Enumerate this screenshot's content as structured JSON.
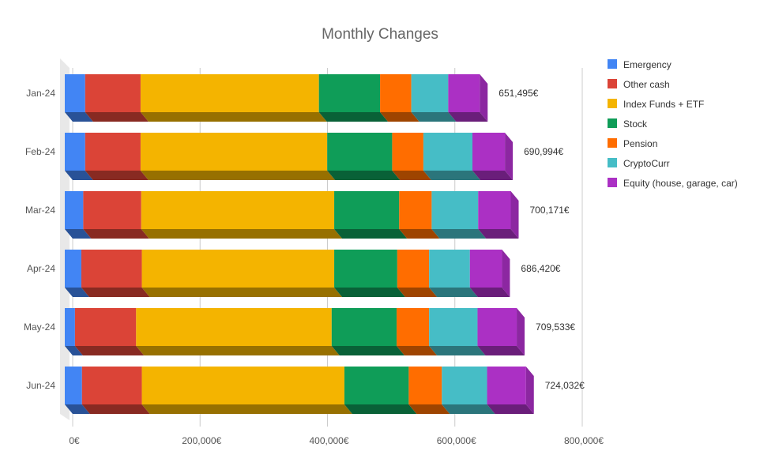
{
  "chart_data": {
    "type": "bar",
    "orientation": "horizontal",
    "stacked": true,
    "style": "3d",
    "title": "Monthly Changes",
    "xlabel": "",
    "ylabel": "",
    "xlim": [
      0,
      800000
    ],
    "x_ticks": [
      {
        "value": 0,
        "label": "0€"
      },
      {
        "value": 200000,
        "label": "200,000€"
      },
      {
        "value": 400000,
        "label": "400,000€"
      },
      {
        "value": 600000,
        "label": "600,000€"
      },
      {
        "value": 800000,
        "label": "800,000€"
      }
    ],
    "grid": true,
    "legend_position": "right",
    "categories": [
      "Jan-24",
      "Feb-24",
      "Mar-24",
      "Apr-24",
      "May-24",
      "Jun-24"
    ],
    "totals": [
      "651,495€",
      "690,994€",
      "700,171€",
      "686,420€",
      "709,533€",
      "724,032€"
    ],
    "series": [
      {
        "name": "Emergency",
        "color": "#4285f4",
        "values": [
          32000,
          32000,
          29000,
          26000,
          16000,
          27000
        ]
      },
      {
        "name": "Other cash",
        "color": "#db4437",
        "values": [
          87000,
          87000,
          91000,
          95000,
          96000,
          94000
        ]
      },
      {
        "name": "Index Funds + ETF",
        "color": "#f4b400",
        "values": [
          280000,
          293000,
          303000,
          302000,
          307000,
          318000
        ]
      },
      {
        "name": "Stock",
        "color": "#0f9d58",
        "values": [
          96000,
          102000,
          102000,
          99000,
          102000,
          101000
        ]
      },
      {
        "name": "Pension",
        "color": "#ff6d00",
        "values": [
          49000,
          49000,
          51000,
          50000,
          51000,
          52000
        ]
      },
      {
        "name": "CryptoCurr",
        "color": "#46bdc6",
        "values": [
          58000,
          77000,
          73000,
          64000,
          76000,
          71000
        ]
      },
      {
        "name": "Equity (house, garage, car)",
        "color": "#ab30c4",
        "values": [
          49495,
          50994,
          51171,
          50420,
          61533,
          61032
        ]
      }
    ]
  }
}
